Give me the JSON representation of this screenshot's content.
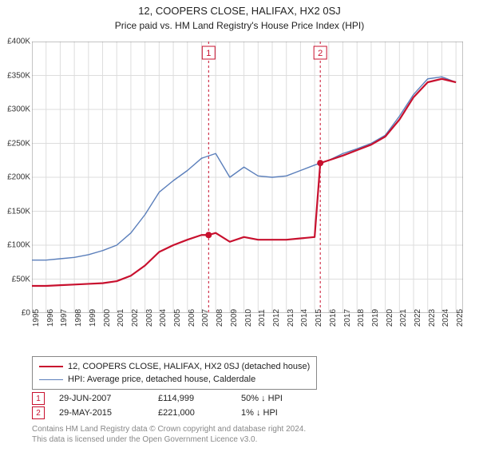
{
  "title_line1": "12, COOPERS CLOSE, HALIFAX, HX2 0SJ",
  "title_line2": "Price paid vs. HM Land Registry's House Price Index (HPI)",
  "title_fontsize": 13,
  "subtitle_fontsize": 12,
  "chart": {
    "type": "line",
    "background_color": "#ffffff",
    "grid_color": "#dddddd",
    "plot_border_color": "#888888",
    "x_years": [
      1995,
      1996,
      1997,
      1998,
      1999,
      2000,
      2001,
      2002,
      2003,
      2004,
      2005,
      2006,
      2007,
      2008,
      2009,
      2010,
      2011,
      2012,
      2013,
      2014,
      2015,
      2016,
      2017,
      2018,
      2019,
      2020,
      2021,
      2022,
      2023,
      2024,
      2025
    ],
    "xlim": [
      1995,
      2025.5
    ],
    "ylim": [
      0,
      400000
    ],
    "ytick_step": 50000,
    "yticks": [
      "£0",
      "£50K",
      "£100K",
      "£150K",
      "£200K",
      "£250K",
      "£300K",
      "£350K",
      "£400K"
    ],
    "axis_fontsize": 10,
    "line_width_main": 2.2,
    "line_width_hpi": 1.4,
    "series": {
      "property": {
        "label": "12, COOPERS CLOSE, HALIFAX, HX2 0SJ (detached house)",
        "color": "#c8102e",
        "data": [
          [
            1995,
            40000
          ],
          [
            1996,
            40000
          ],
          [
            1997,
            41000
          ],
          [
            1998,
            42000
          ],
          [
            1999,
            43000
          ],
          [
            2000,
            44000
          ],
          [
            2001,
            47000
          ],
          [
            2002,
            55000
          ],
          [
            2003,
            70000
          ],
          [
            2004,
            90000
          ],
          [
            2005,
            100000
          ],
          [
            2006,
            108000
          ],
          [
            2007,
            115000
          ],
          [
            2007.5,
            114999
          ],
          [
            2008,
            118000
          ],
          [
            2009,
            105000
          ],
          [
            2010,
            112000
          ],
          [
            2011,
            108000
          ],
          [
            2012,
            108000
          ],
          [
            2013,
            108000
          ],
          [
            2014,
            110000
          ],
          [
            2015,
            112000
          ],
          [
            2015.4,
            221000
          ],
          [
            2016,
            225000
          ],
          [
            2017,
            232000
          ],
          [
            2018,
            240000
          ],
          [
            2019,
            248000
          ],
          [
            2020,
            260000
          ],
          [
            2021,
            285000
          ],
          [
            2022,
            318000
          ],
          [
            2023,
            340000
          ],
          [
            2024,
            345000
          ],
          [
            2025,
            340000
          ]
        ]
      },
      "hpi": {
        "label": "HPI: Average price, detached house, Calderdale",
        "color": "#5b7fbb",
        "data": [
          [
            1995,
            78000
          ],
          [
            1996,
            78000
          ],
          [
            1997,
            80000
          ],
          [
            1998,
            82000
          ],
          [
            1999,
            86000
          ],
          [
            2000,
            92000
          ],
          [
            2001,
            100000
          ],
          [
            2002,
            118000
          ],
          [
            2003,
            145000
          ],
          [
            2004,
            178000
          ],
          [
            2005,
            195000
          ],
          [
            2006,
            210000
          ],
          [
            2007,
            228000
          ],
          [
            2008,
            235000
          ],
          [
            2009,
            200000
          ],
          [
            2010,
            215000
          ],
          [
            2011,
            202000
          ],
          [
            2012,
            200000
          ],
          [
            2013,
            202000
          ],
          [
            2014,
            210000
          ],
          [
            2015,
            218000
          ],
          [
            2016,
            225000
          ],
          [
            2017,
            235000
          ],
          [
            2018,
            242000
          ],
          [
            2019,
            250000
          ],
          [
            2020,
            262000
          ],
          [
            2021,
            290000
          ],
          [
            2022,
            322000
          ],
          [
            2023,
            345000
          ],
          [
            2024,
            348000
          ],
          [
            2025,
            340000
          ]
        ]
      }
    },
    "sale_markers": [
      {
        "index": 1,
        "color": "#c8102e",
        "year": 2007.5,
        "value": 114999,
        "date": "29-JUN-2007",
        "price": "£114,999",
        "hpi_delta": "50% ↓ HPI"
      },
      {
        "index": 2,
        "color": "#c8102e",
        "year": 2015.4,
        "value": 221000,
        "date": "29-MAY-2015",
        "price": "£221,000",
        "hpi_delta": "1% ↓ HPI"
      }
    ],
    "vline_dash": "3,3"
  },
  "legend_border_color": "#888888",
  "footer_line1": "Contains HM Land Registry data © Crown copyright and database right 2024.",
  "footer_line2": "This data is licensed under the Open Government Licence v3.0."
}
